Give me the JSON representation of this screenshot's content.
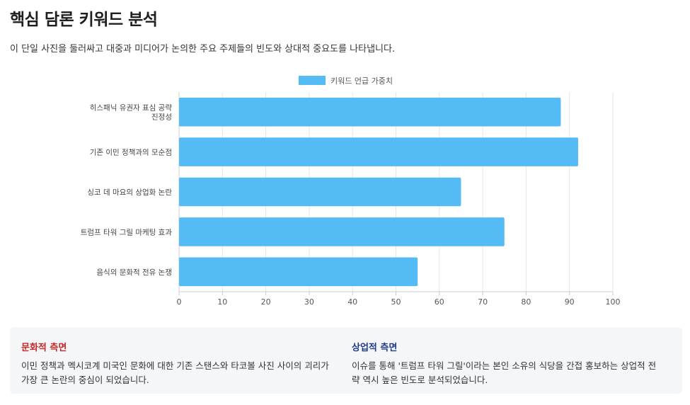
{
  "page": {
    "title": "핵심 담론 키워드 분석",
    "subtitle": "이 단일 사진을 둘러싸고 대중과 미디어가 논의한 주요 주제들의 빈도와 상대적 중요도를 나타냅니다."
  },
  "chart_data": {
    "type": "bar",
    "orientation": "horizontal",
    "categories": [
      [
        "히스패닉 유권자 표심 공략",
        "진정성"
      ],
      [
        "기존 이민 정책과의 모순점"
      ],
      [
        "싱코 데 마요의 상업화 논란"
      ],
      [
        "트럼프 타워 그릴 마케팅 효과"
      ],
      [
        "음식의 문화적 전유 논쟁"
      ]
    ],
    "series": [
      {
        "name": "키워드 언급 가중치",
        "values": [
          88,
          92,
          65,
          75,
          55
        ]
      }
    ],
    "xlim": [
      0,
      100
    ],
    "xticks": [
      0,
      10,
      20,
      30,
      40,
      50,
      60,
      70,
      80,
      90,
      100
    ],
    "grid": true,
    "legend": "top-center",
    "color": "#55bbf4"
  },
  "insights": {
    "cultural": {
      "heading": "문화적 측면",
      "heading_color": "#c62828",
      "body": "이민 정책과 멕시코계 미국인 문화에 대한 기존 스탠스와 타코볼 사진 사이의 괴리가 가장 큰 논란의 중심이 되었습니다."
    },
    "commercial": {
      "heading": "상업적 측면",
      "heading_color": "#1f3c88",
      "body": "이슈를 통해 '트럼프 타워 그릴'이라는 본인 소유의 식당을 간접 홍보하는 상업적 전략 역시 높은 빈도로 분석되었습니다."
    }
  }
}
